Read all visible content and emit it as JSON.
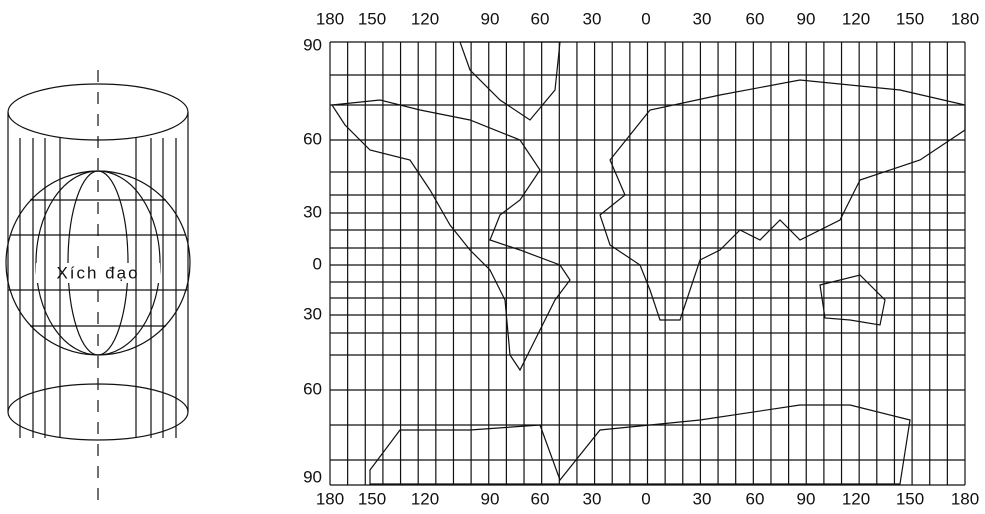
{
  "cylinder": {
    "equator_label": "Xích đạo"
  },
  "map": {
    "top_labels": [
      "180",
      "150",
      "120",
      "90",
      "60",
      "30",
      "0",
      "30",
      "60",
      "90",
      "120",
      "150",
      "180"
    ],
    "bottom_labels": [
      "180",
      "150",
      "120",
      "90",
      "60",
      "30",
      "0",
      "30",
      "60",
      "90",
      "120",
      "150",
      "180"
    ],
    "left_labels": [
      "90",
      "60",
      "30",
      "0",
      "30",
      "60",
      "90"
    ]
  }
}
